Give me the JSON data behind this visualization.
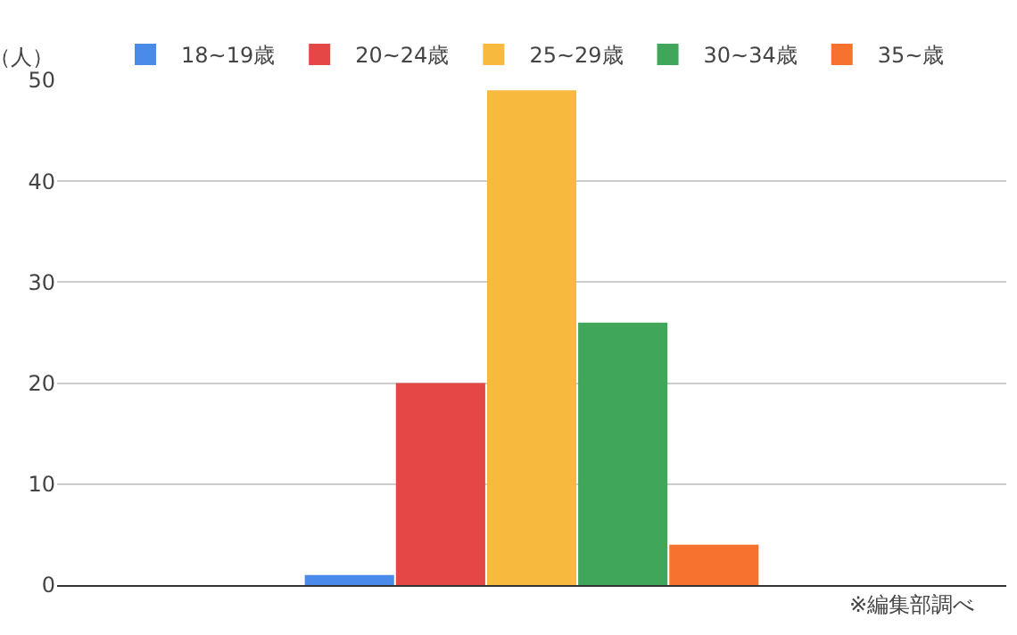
{
  "chart_data": {
    "type": "bar",
    "categories": [
      null
    ],
    "ylabel": "（人）",
    "ylim": [
      0,
      50
    ],
    "yticks": [
      0,
      10,
      20,
      30,
      40,
      50
    ],
    "grid": "y",
    "legend": "top",
    "series": [
      {
        "name": "18~19歳",
        "color": "#4a8ae8",
        "values": [
          1
        ]
      },
      {
        "name": "20~24歳",
        "color": "#e44745",
        "values": [
          20
        ]
      },
      {
        "name": "25~29歳",
        "color": "#f7b93e",
        "values": [
          49
        ]
      },
      {
        "name": "30~34歳",
        "color": "#3fa65a",
        "values": [
          26
        ]
      },
      {
        "name": "35~歳",
        "color": "#f7722f",
        "values": [
          4
        ]
      }
    ],
    "annotations": [
      "※編集部調べ"
    ]
  }
}
